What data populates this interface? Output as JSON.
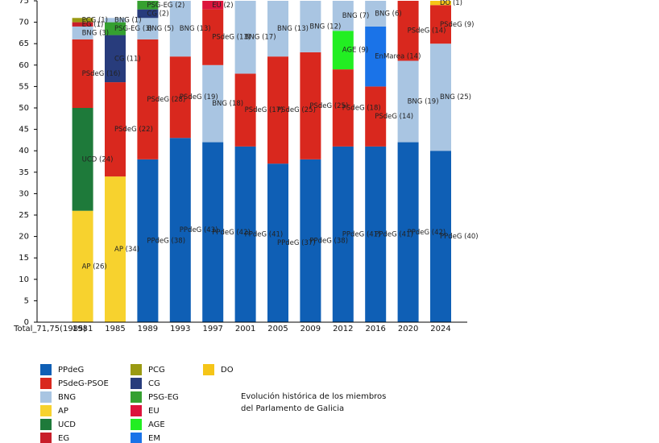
{
  "chart_data": {
    "type": "stacked_bar",
    "categories": [
      "Total_71,75(1985)",
      "1981",
      "1985",
      "1989",
      "1993",
      "1997",
      "2001",
      "2005",
      "2009",
      "2012",
      "2016",
      "2020",
      "2024"
    ],
    "series": [
      {
        "name": "PPdeG",
        "color": "#0f5fb5",
        "values": [
          null,
          null,
          null,
          38,
          43,
          42,
          41,
          37,
          38,
          41,
          41,
          42,
          40
        ],
        "value_labels": [
          null,
          null,
          null,
          "PPdeG (38)",
          "PPdeG (43)",
          "PPdeG (42)",
          "PPdeG (41)",
          "PPdeG (37)",
          "PPdeG (38)",
          "PPdeG (41)",
          "PPdeG (41)",
          "PPdeG (42)",
          "PPdeG (40)"
        ]
      },
      {
        "name": "PSdeG-PSOE",
        "color": "#d9281e",
        "values": [
          null,
          16,
          22,
          28,
          19,
          13,
          17,
          25,
          25,
          18,
          14,
          14,
          9
        ],
        "value_labels": [
          null,
          "PSdeG (16)",
          "PSdeG (22)",
          "PSdeG (28)",
          "PSdeG (19)",
          "PSdeG (13)",
          "PSdeG (17)",
          "PSdeG (25)",
          "PSdeG (25)",
          "PSdeG (18)",
          "PSdeG (14)",
          "PSdeG (14)",
          "PSdeG (9)"
        ]
      },
      {
        "name": "BNG",
        "color": "#a9c5e2",
        "values": [
          null,
          3,
          1,
          5,
          13,
          18,
          17,
          13,
          12,
          7,
          6,
          19,
          25
        ],
        "value_labels": [
          null,
          "BNG (3)",
          "BNG (1)",
          "BNG (5)",
          "BNG (13)",
          "BNG (18)",
          "BNG (17)",
          "BNG (13)",
          "BNG (12)",
          "BNG (7)",
          "BNG (6)",
          "BNG (19)",
          "BNG (25)"
        ]
      },
      {
        "name": "AP",
        "color": "#f7d22e",
        "values": [
          null,
          26,
          34,
          null,
          null,
          null,
          null,
          null,
          null,
          null,
          null,
          null,
          null
        ],
        "value_labels": [
          null,
          "AP (26)",
          "AP (34)",
          null,
          null,
          null,
          null,
          null,
          null,
          null,
          null,
          null,
          null
        ]
      },
      {
        "name": "UCD",
        "color": "#1e7a3a",
        "values": [
          null,
          24,
          null,
          null,
          null,
          null,
          null,
          null,
          null,
          null,
          null,
          null,
          null
        ],
        "value_labels": [
          null,
          "UCD (24)",
          null,
          null,
          null,
          null,
          null,
          null,
          null,
          null,
          null,
          null,
          null
        ]
      },
      {
        "name": "EG",
        "color": "#c81e2a",
        "values": [
          null,
          1,
          null,
          null,
          null,
          null,
          null,
          null,
          null,
          null,
          null,
          null,
          null
        ],
        "value_labels": [
          null,
          "EG (1)",
          null,
          null,
          null,
          null,
          null,
          null,
          null,
          null,
          null,
          null,
          null
        ]
      },
      {
        "name": "PCG",
        "color": "#9a9a12",
        "values": [
          null,
          1,
          null,
          null,
          null,
          null,
          null,
          null,
          null,
          null,
          null,
          null,
          null
        ],
        "value_labels": [
          null,
          "PCG (1)",
          null,
          null,
          null,
          null,
          null,
          null,
          null,
          null,
          null,
          null,
          null
        ]
      },
      {
        "name": "CG",
        "color": "#283c7c",
        "values": [
          null,
          null,
          11,
          2,
          null,
          null,
          null,
          null,
          null,
          null,
          null,
          null,
          null
        ],
        "value_labels": [
          null,
          null,
          "CG (11)",
          "CG (2)",
          null,
          null,
          null,
          null,
          null,
          null,
          null,
          null,
          null
        ]
      },
      {
        "name": "PSG-EG",
        "color": "#35a030",
        "values": [
          null,
          null,
          3,
          2,
          null,
          null,
          null,
          null,
          null,
          null,
          null,
          null,
          null
        ],
        "value_labels": [
          null,
          null,
          "PSG-EG (3)",
          "PSG-EG (2)",
          null,
          null,
          null,
          null,
          null,
          null,
          null,
          null,
          null
        ]
      },
      {
        "name": "EU",
        "color": "#dc143c",
        "values": [
          null,
          null,
          null,
          null,
          null,
          2,
          null,
          null,
          null,
          null,
          null,
          null,
          null
        ],
        "value_labels": [
          null,
          null,
          null,
          null,
          null,
          "EU (2)",
          null,
          null,
          null,
          null,
          null,
          null,
          null
        ]
      },
      {
        "name": "AGE",
        "color": "#22ee22",
        "values": [
          null,
          null,
          null,
          null,
          null,
          null,
          null,
          null,
          null,
          9,
          null,
          null,
          null
        ],
        "value_labels": [
          null,
          null,
          null,
          null,
          null,
          null,
          null,
          null,
          null,
          "AGE (9)",
          null,
          null,
          null
        ]
      },
      {
        "name": "EM",
        "color": "#1a73e8",
        "values": [
          null,
          null,
          null,
          null,
          null,
          null,
          null,
          null,
          null,
          null,
          14,
          null,
          null
        ],
        "value_labels": [
          null,
          null,
          null,
          null,
          null,
          null,
          null,
          null,
          null,
          null,
          "EnMarea (14)",
          null,
          null
        ]
      },
      {
        "name": "DO",
        "color": "#f5c518",
        "values": [
          null,
          null,
          null,
          null,
          null,
          null,
          null,
          null,
          null,
          null,
          null,
          null,
          1
        ],
        "value_labels": [
          null,
          null,
          null,
          null,
          null,
          null,
          null,
          null,
          null,
          null,
          null,
          null,
          "DO (1)"
        ]
      }
    ],
    "ylim": [
      0,
      75
    ],
    "yticks": [
      0,
      5,
      10,
      15,
      20,
      25,
      30,
      35,
      40,
      45,
      50,
      55,
      60,
      65,
      70,
      75
    ],
    "grid": false,
    "annotation": [
      "Evolución histórica de los miembros",
      "del Parlamento de Galicia"
    ]
  }
}
